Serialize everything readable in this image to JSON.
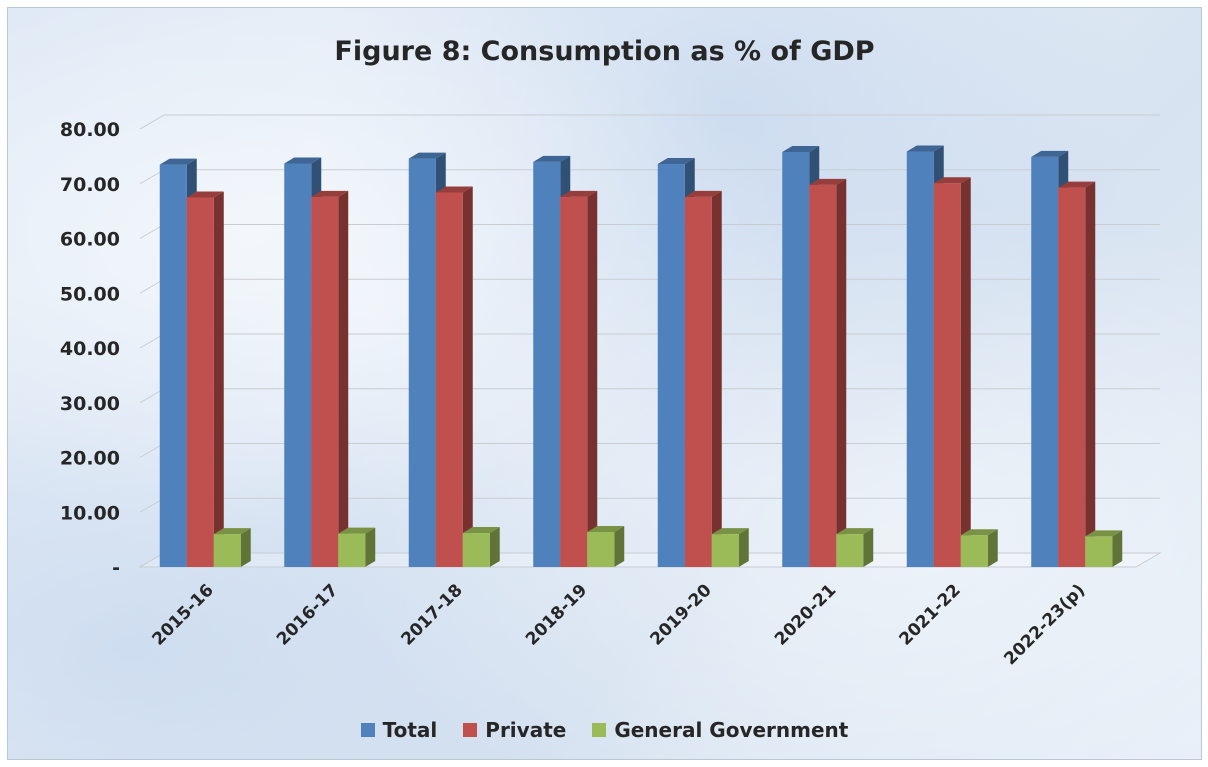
{
  "chart_data": {
    "type": "bar",
    "title": "Figure 8: Consumption as % of GDP",
    "xlabel": "",
    "ylabel": "",
    "categories": [
      "2015-16",
      "2016-17",
      "2017-18",
      "2018-19",
      "2019-20",
      "2020-21",
      "2021-22",
      "2022-23(p)"
    ],
    "series": [
      {
        "name": "Total",
        "color": "#4f81bd",
        "values": [
          73.5,
          73.7,
          74.6,
          74.0,
          73.6,
          75.8,
          75.9,
          74.9
        ]
      },
      {
        "name": "Private",
        "color": "#c0504d",
        "values": [
          67.5,
          67.6,
          68.4,
          67.6,
          67.6,
          69.8,
          70.1,
          69.3
        ]
      },
      {
        "name": "General Government",
        "color": "#9bbb59",
        "values": [
          6.0,
          6.1,
          6.2,
          6.4,
          6.0,
          6.0,
          5.8,
          5.6
        ]
      }
    ],
    "y_ticks": [
      "-",
      "10.00",
      "20.00",
      "30.00",
      "40.00",
      "50.00",
      "60.00",
      "70.00",
      "80.00"
    ],
    "ylim": [
      0,
      80
    ],
    "grid": true,
    "legend_position": "bottom"
  }
}
